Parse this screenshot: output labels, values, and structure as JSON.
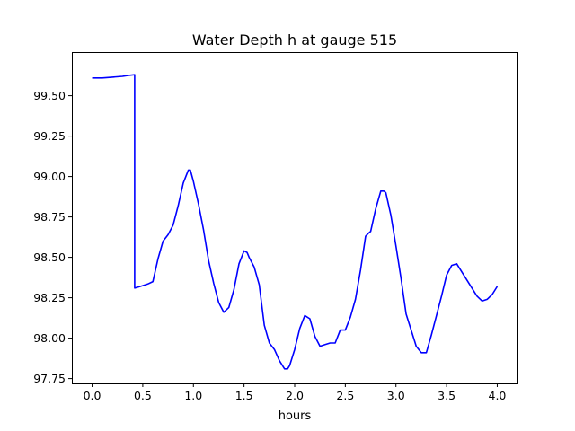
{
  "chart_data": {
    "type": "line",
    "title": "Water Depth h at gauge 515",
    "xlabel": "hours",
    "ylabel": "",
    "xlim": [
      -0.2,
      4.2
    ],
    "ylim": [
      97.72,
      99.77
    ],
    "xticks": [
      0.0,
      0.5,
      1.0,
      1.5,
      2.0,
      2.5,
      3.0,
      3.5,
      4.0
    ],
    "xtick_labels": [
      "0.0",
      "0.5",
      "1.0",
      "1.5",
      "2.0",
      "2.5",
      "3.0",
      "3.5",
      "4.0"
    ],
    "yticks": [
      97.75,
      98.0,
      98.25,
      98.5,
      98.75,
      99.0,
      99.25,
      99.5
    ],
    "ytick_labels": [
      "97.75",
      "98.00",
      "98.25",
      "98.50",
      "98.75",
      "99.00",
      "99.25",
      "99.50"
    ],
    "grid": false,
    "series": [
      {
        "color": "#0000ff",
        "x": [
          0.0,
          0.1,
          0.2,
          0.3,
          0.35,
          0.42,
          0.42,
          0.45,
          0.5,
          0.55,
          0.6,
          0.65,
          0.7,
          0.75,
          0.8,
          0.85,
          0.9,
          0.95,
          0.97,
          1.0,
          1.05,
          1.1,
          1.15,
          1.2,
          1.25,
          1.3,
          1.35,
          1.4,
          1.45,
          1.5,
          1.53,
          1.55,
          1.6,
          1.65,
          1.7,
          1.75,
          1.8,
          1.85,
          1.9,
          1.93,
          1.95,
          2.0,
          2.05,
          2.1,
          2.15,
          2.2,
          2.25,
          2.3,
          2.35,
          2.4,
          2.45,
          2.5,
          2.55,
          2.6,
          2.65,
          2.7,
          2.73,
          2.75,
          2.8,
          2.85,
          2.88,
          2.9,
          2.95,
          3.0,
          3.05,
          3.1,
          3.15,
          3.2,
          3.25,
          3.3,
          3.35,
          3.4,
          3.45,
          3.5,
          3.55,
          3.6,
          3.65,
          3.7,
          3.75,
          3.8,
          3.85,
          3.9,
          3.95,
          4.0
        ],
        "y": [
          99.61,
          99.61,
          99.615,
          99.62,
          99.625,
          99.63,
          98.31,
          98.315,
          98.325,
          98.335,
          98.35,
          98.49,
          98.6,
          98.64,
          98.7,
          98.82,
          98.96,
          99.04,
          99.04,
          98.97,
          98.83,
          98.67,
          98.48,
          98.34,
          98.22,
          98.16,
          98.19,
          98.3,
          98.46,
          98.54,
          98.53,
          98.5,
          98.44,
          98.33,
          98.08,
          97.97,
          97.93,
          97.86,
          97.81,
          97.81,
          97.83,
          97.93,
          98.06,
          98.14,
          98.12,
          98.01,
          97.95,
          97.96,
          97.97,
          97.97,
          98.05,
          98.05,
          98.13,
          98.24,
          98.42,
          98.63,
          98.65,
          98.66,
          98.8,
          98.91,
          98.91,
          98.9,
          98.76,
          98.57,
          98.37,
          98.15,
          98.05,
          97.95,
          97.91,
          97.91,
          98.02,
          98.14,
          98.26,
          98.39,
          98.45,
          98.46,
          98.41,
          98.36,
          98.31,
          98.26,
          98.23,
          98.24,
          98.27,
          98.32
        ]
      }
    ]
  }
}
